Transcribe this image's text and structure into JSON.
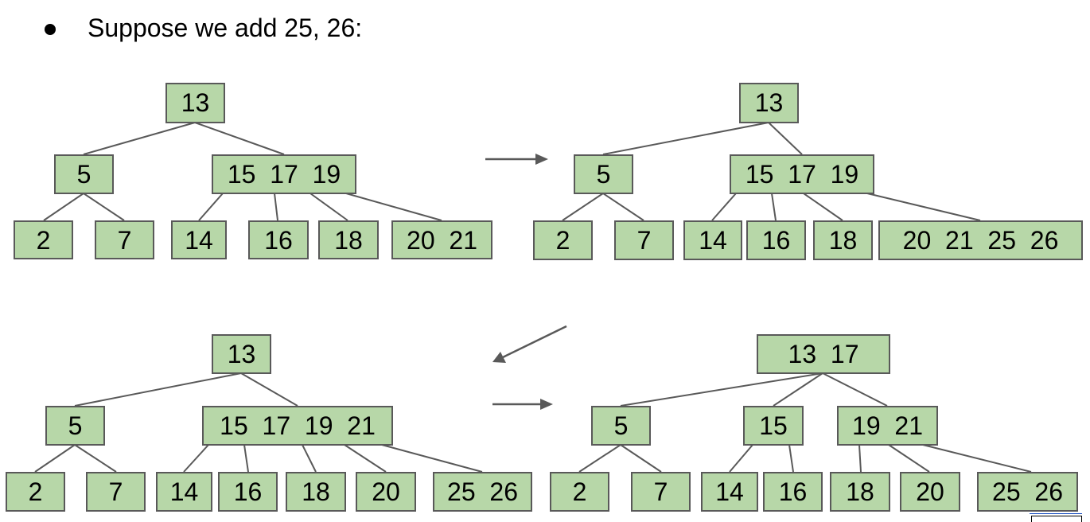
{
  "slide": {
    "heading": "Suppose we add 25, 26:"
  },
  "tree_a": {
    "root": "13",
    "left": "5",
    "right": "15  17  19",
    "leaves": [
      "2",
      "7",
      "14",
      "16",
      "18",
      "20  21"
    ]
  },
  "tree_b": {
    "root": "13",
    "left": "5",
    "right": "15  17  19",
    "leaves": [
      "2",
      "7",
      "14",
      "16",
      "18",
      "20  21  25  26"
    ]
  },
  "tree_c": {
    "root": "13",
    "left": "5",
    "right": "15  17  19  21",
    "leaves": [
      "2",
      "7",
      "14",
      "16",
      "18",
      "20",
      "25  26"
    ]
  },
  "tree_d": {
    "root": "13  17",
    "left": "5",
    "middle": "15",
    "right": "19  21",
    "leaves": [
      "2",
      "7",
      "14",
      "16",
      "18",
      "20",
      "25  26"
    ]
  },
  "colors": {
    "node_fill": "#b7d7a8",
    "node_border": "#595959",
    "edge": "#595959"
  }
}
